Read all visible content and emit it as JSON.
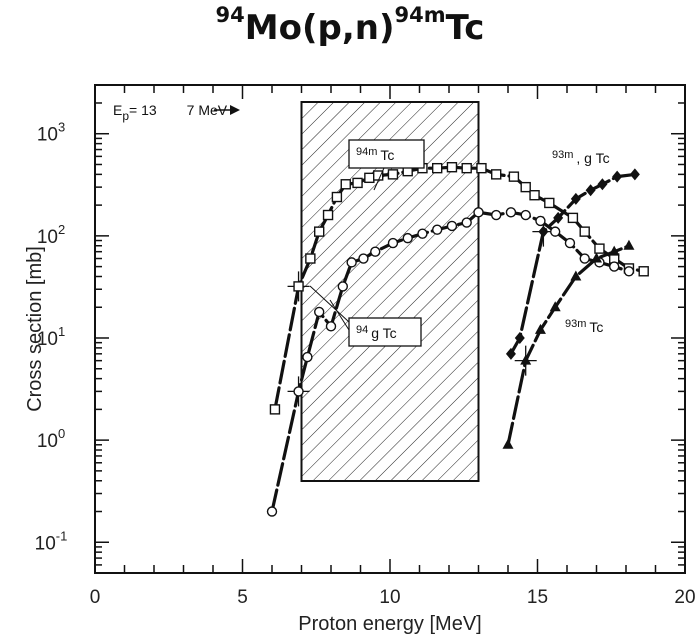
{
  "title": {
    "a": "94",
    "b": "Mo(p,n)",
    "c": "94m",
    "d": "Tc"
  },
  "chart_data": {
    "type": "scatter",
    "xlabel": "Proton energy [MeV]",
    "ylabel": "Cross section [mb]",
    "xlim": [
      0,
      20
    ],
    "ylim": [
      0.05,
      3000
    ],
    "y_scale": "log",
    "x_ticks": [
      "0",
      "5",
      "10",
      "15",
      "20"
    ],
    "y_ticks": [
      {
        "base": "10",
        "exp": "-1",
        "v": 0.1
      },
      {
        "base": "10",
        "exp": "0",
        "v": 1
      },
      {
        "base": "10",
        "exp": "1",
        "v": 10
      },
      {
        "base": "10",
        "exp": "2",
        "v": 100
      },
      {
        "base": "10",
        "exp": "3",
        "v": 1000
      }
    ],
    "energy_window": {
      "label_parts": [
        "E",
        "p",
        "= 13",
        "7 MeV"
      ],
      "from": 7,
      "to": 13
    },
    "series": [
      {
        "name": "94mTc",
        "label_sup": "94m",
        "label_main": "Tc",
        "marker": "square",
        "x": [
          6.1,
          6.9,
          7.3,
          7.6,
          7.9,
          8.2,
          8.5,
          8.9,
          9.3,
          9.6,
          10.1,
          10.6,
          11.1,
          11.6,
          12.1,
          12.6,
          13.1,
          13.6,
          14.2,
          14.6,
          14.9,
          15.4,
          16.2,
          16.6,
          17.1,
          17.6,
          18.1,
          18.6
        ],
        "y": [
          2.0,
          32,
          60,
          110,
          160,
          240,
          320,
          330,
          370,
          390,
          400,
          430,
          460,
          460,
          470,
          460,
          460,
          400,
          380,
          300,
          250,
          210,
          150,
          110,
          75,
          60,
          48,
          45
        ]
      },
      {
        "name": "94gTc",
        "label_sup": "94",
        "label_main": "g Tc",
        "marker": "circle",
        "x": [
          6.0,
          6.9,
          7.2,
          7.6,
          8.0,
          8.4,
          8.7,
          9.1,
          9.5,
          10.1,
          10.6,
          11.1,
          11.6,
          12.1,
          12.6,
          13.0,
          13.6,
          14.1,
          14.6,
          15.1,
          15.6,
          16.1,
          16.6,
          17.1,
          17.6,
          18.1
        ],
        "y": [
          0.2,
          3.0,
          6.5,
          18,
          13,
          32,
          55,
          60,
          70,
          85,
          95,
          105,
          115,
          125,
          135,
          170,
          160,
          170,
          160,
          140,
          110,
          85,
          60,
          55,
          50,
          45
        ]
      },
      {
        "name": "93m,gTc",
        "label_sup": "93m",
        "label_main": ", g Tc",
        "marker": "diamond",
        "x": [
          14.1,
          14.4,
          15.2,
          15.7,
          16.3,
          16.8,
          17.2,
          17.7,
          18.3
        ],
        "y": [
          7.0,
          10,
          110,
          150,
          230,
          280,
          320,
          380,
          400
        ]
      },
      {
        "name": "93mTc",
        "label_sup": "93m",
        "label_main": "Tc",
        "marker": "triangle",
        "x": [
          14.0,
          14.6,
          15.1,
          15.6,
          16.3,
          17.0,
          17.6,
          18.1
        ],
        "y": [
          0.9,
          6.0,
          12,
          20,
          40,
          60,
          70,
          80
        ]
      }
    ]
  }
}
